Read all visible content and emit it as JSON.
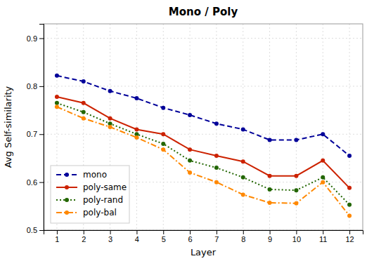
{
  "chart_data": {
    "type": "line",
    "title": "Mono / Poly",
    "x_label": "Layer",
    "y_label": "Avg Self-similarity",
    "x": [
      1,
      2,
      3,
      4,
      5,
      6,
      7,
      8,
      9,
      10,
      11,
      12
    ],
    "series": [
      {
        "name": "mono",
        "color": "#000099",
        "line_style": "dashed",
        "marker": "circle",
        "values": [
          0.822,
          0.81,
          0.79,
          0.775,
          0.755,
          0.74,
          0.722,
          0.71,
          0.688,
          0.688,
          0.7,
          0.655
        ]
      },
      {
        "name": "poly-same",
        "color": "#cc2200",
        "line_style": "solid",
        "marker": "circle",
        "values": [
          0.778,
          0.765,
          0.733,
          0.71,
          0.7,
          0.668,
          0.655,
          0.643,
          0.613,
          0.613,
          0.645,
          0.588
        ]
      },
      {
        "name": "poly-rand",
        "color": "#226600",
        "line_style": "dotted",
        "marker": "circle",
        "values": [
          0.765,
          0.746,
          0.722,
          0.7,
          0.68,
          0.645,
          0.63,
          0.61,
          0.585,
          0.583,
          0.61,
          0.553
        ]
      },
      {
        "name": "poly-bal",
        "color": "#ff8800",
        "line_style": "dashdot",
        "marker": "circle",
        "values": [
          0.757,
          0.733,
          0.715,
          0.693,
          0.668,
          0.62,
          0.6,
          0.574,
          0.557,
          0.556,
          0.6,
          0.53
        ]
      }
    ],
    "xlim": [
      0.5,
      12.5
    ],
    "xticks": [
      1,
      2,
      3,
      4,
      5,
      6,
      7,
      8,
      9,
      10,
      11,
      12
    ],
    "ylim": [
      0.5,
      0.93
    ],
    "yticks": [
      0.5,
      0.6,
      0.7,
      0.8,
      0.9
    ],
    "grid": true,
    "legend": "lower left"
  }
}
